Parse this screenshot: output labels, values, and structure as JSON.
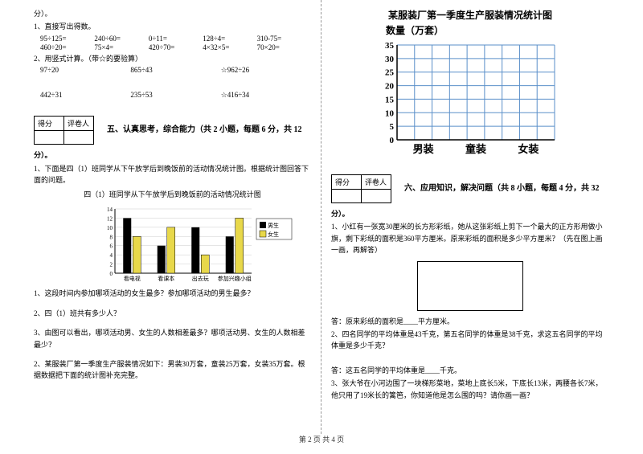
{
  "footer": "第 2 页 共 4 页",
  "left": {
    "fen": "分）。",
    "q1_title": "1、直接写出得数。",
    "q1_rows": [
      [
        "95÷125=",
        "240÷60=",
        "0÷11=",
        "128÷4=",
        "310-75="
      ],
      [
        "460÷20=",
        "75×4=",
        "420÷70=",
        "4×32×5=",
        "70×20="
      ]
    ],
    "q2_title": "2、用竖式计算。（带☆的要验算）",
    "q2_rows": [
      [
        "97÷20",
        "865÷43",
        "☆962÷26"
      ],
      [
        "442÷31",
        "235÷53",
        "☆416÷34"
      ]
    ],
    "score_labels": [
      "得分",
      "评卷人"
    ],
    "section5_title": "五、认真思考，综合能力（共 2 小题，每题 6 分，共 12",
    "section5_fen": "分）。",
    "p1_text": "1、下面是四（1）班同学从下午放学后到晚饭前的活动情况统计图。根据统计图回答下面的问题。",
    "chart1_title": "四（1）班同学从下午放学后到晚饭前的活动情况统计图",
    "chart1": {
      "ymax": 14,
      "ytick_step": 2,
      "categories": [
        "看电视",
        "看课本",
        "出去玩",
        "参加兴趣小组"
      ],
      "boys": [
        12,
        6,
        10,
        8
      ],
      "girls": [
        8,
        10,
        4,
        12
      ],
      "boy_color": "#000000",
      "girl_color": "#e8d84a",
      "legend": [
        "男生",
        "女生"
      ]
    },
    "p1_q1": "1、这段时间内参加哪项活动的女生最多？参加哪项活动的男生最多？",
    "p1_q2": "2、四（1）班共有多少人？",
    "p1_q3": "3、由图可以看出，哪项活动男、女生的人数相差最多？哪项活动男、女生的人数相差最少？",
    "p2_text": "2、某服装厂第一季度生产服装情况如下：男装30万套，童装25万套，女装35万套。根据数据把下面的统计图补充完整。"
  },
  "right": {
    "chart2_title": "某服装厂第一季度生产服装情况统计图",
    "chart2_ylabel": "数量（万套）",
    "chart2": {
      "ymax": 35,
      "ytick_step": 5,
      "categories": [
        "男装",
        "童装",
        "女装"
      ],
      "grid_color": "#5a8fc9",
      "background": "#ffffff"
    },
    "score_labels": [
      "得分",
      "评卷人"
    ],
    "section6_title": "六、应用知识，解决问题（共 8 小题，每题 4 分，共 32",
    "section6_fen": "分）。",
    "q1": "1、小红有一张宽30厘米的长方形彩纸，她从这张彩纸上剪下一个最大的正方形用做小旗，剩下彩纸的面积是360平方厘米。原来彩纸的面积是多少平方厘米？（先在图上画一画，再解答）",
    "q1_ans": "答：原来彩纸的面积是____平方厘米。",
    "q2": "2、四名同学的平均体重是43千克，第五名同学的体重是38千克，求这五名同学的平均体重是多少千克？",
    "q2_ans": "答：这五名同学的平均体重是____千克。",
    "q3": "3、张大爷在小河边围了一块梯形菜地，菜地上底长5米，下底长13米，两腰各长7米，他只用了19米长的篱笆，你知道他是怎么围的吗？请你画一画？"
  }
}
